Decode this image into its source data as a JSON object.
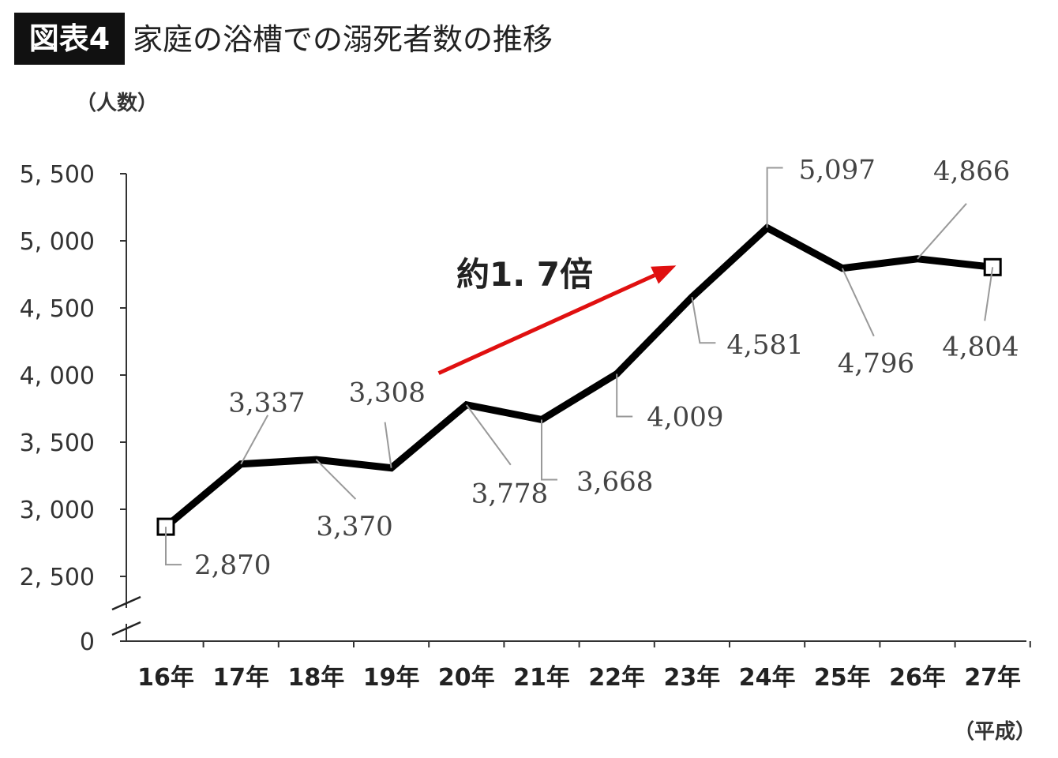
{
  "header": {
    "badge": "図表4",
    "title": "家庭の浴槽での溺死者数の推移"
  },
  "chart_data": {
    "type": "line",
    "title": "家庭の浴槽での溺死者数の推移",
    "ylabel": "（人数）",
    "xlabel": "（平成）",
    "categories": [
      "16年",
      "17年",
      "18年",
      "19年",
      "20年",
      "21年",
      "22年",
      "23年",
      "24年",
      "25年",
      "26年",
      "27年"
    ],
    "series": [
      {
        "values": [
          2870,
          3337,
          3370,
          3308,
          3778,
          3668,
          4009,
          4581,
          5097,
          4796,
          4866,
          4804
        ],
        "labels": [
          "2,870",
          "3,337",
          "3,370",
          "3,308",
          "3,778",
          "3,668",
          "4,009",
          "4,581",
          "5,097",
          "4,796",
          "4,866",
          "4,804"
        ],
        "color": "#000000"
      }
    ],
    "yticks": [
      {
        "value": 0,
        "label": "0"
      },
      {
        "value": 2500,
        "label": "2, 500"
      },
      {
        "value": 3000,
        "label": "3, 000"
      },
      {
        "value": 3500,
        "label": "3, 500"
      },
      {
        "value": 4000,
        "label": "4, 000"
      },
      {
        "value": 4500,
        "label": "4, 500"
      },
      {
        "value": 5000,
        "label": "5, 000"
      },
      {
        "value": 5500,
        "label": "5, 500"
      }
    ],
    "ylim": [
      2500,
      5500
    ],
    "axis_break": true,
    "grid": false,
    "annotation": {
      "text": "約1. 7倍",
      "arrow_from": "19年",
      "arrow_to": "23年",
      "arrow_color": "#e01010"
    }
  }
}
